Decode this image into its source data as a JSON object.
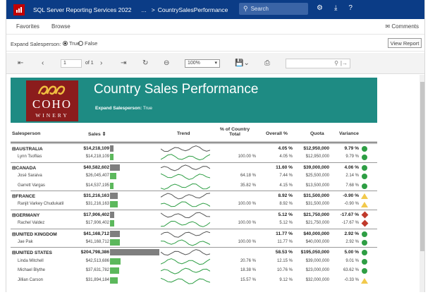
{
  "topbar": {
    "app_title": "SQL Server Reporting Services 2022",
    "ellipsis": "...",
    "breadcrumb_sep": ">",
    "report_name": "CountrySalesPerformance",
    "search_placeholder": "Search",
    "icons": [
      "gear-icon",
      "download-icon",
      "help-icon"
    ]
  },
  "nav": {
    "favorites": "Favorites",
    "browse": "Browse",
    "comments": "Comments"
  },
  "params": {
    "label": "Expand Salesperson:",
    "options": [
      "True",
      "False"
    ],
    "selected": "True",
    "view_report": "View Report"
  },
  "toolbar": {
    "page": "1",
    "of_pages": "of 1",
    "zoom": "100%",
    "icons": [
      "first-page-icon",
      "prev-page-icon",
      "next-page-icon",
      "last-page-icon",
      "refresh-icon",
      "back-icon",
      "export-icon",
      "print-icon",
      "find-icon",
      "find-next-icon"
    ]
  },
  "report": {
    "logo_word": "COHO",
    "logo_sub": "WINERY",
    "title": "Country Sales Performance",
    "subtitle_label": "Expand Salesperson:",
    "subtitle_value": "True",
    "columns": {
      "salesperson": "Salesperson",
      "sales": "Sales",
      "trend": "Trend",
      "pct_country": "% of Country",
      "pct_country_2": "Total",
      "overall": "Overall %",
      "quota": "Quota",
      "variance": "Variance"
    },
    "accent_colors": {
      "banner": "#1e8b83",
      "group_bar": "#7f7f7f",
      "person_bar": "#5cb85c",
      "good": "#2e9e44",
      "warn": "#f2c94c",
      "bad": "#c0392b"
    },
    "rows": [
      {
        "kind": "grp",
        "name": "⊟AUSTRALIA",
        "sales": "$14,218,109",
        "bar": 0.07,
        "pct": "",
        "overall": "4.05 %",
        "quota": "$12,950,000",
        "variance": "9.79 %",
        "status": "good"
      },
      {
        "kind": "sub",
        "name": "Lynn Tsoflias",
        "sales": "$14,218,109",
        "bar": 0.07,
        "pct": "100.00 %",
        "overall": "4.05 %",
        "quota": "$12,950,000",
        "variance": "9.79 %",
        "status": "good"
      },
      {
        "kind": "grp",
        "name": "⊟CANADA",
        "sales": "$40,582,602",
        "bar": 0.2,
        "pct": "",
        "overall": "11.60 %",
        "quota": "$39,000,000",
        "variance": "4.06 %",
        "status": "good"
      },
      {
        "kind": "sub",
        "name": "José Saraiva",
        "sales": "$26,045,407",
        "bar": 0.13,
        "pct": "64.18 %",
        "overall": "7.44 %",
        "quota": "$25,500,000",
        "variance": "2.14 %",
        "status": "good"
      },
      {
        "kind": "sub",
        "name": "Garrett Vargas",
        "sales": "$14,537,195",
        "bar": 0.07,
        "pct": "35.82 %",
        "overall": "4.15 %",
        "quota": "$13,500,000",
        "variance": "7.68 %",
        "status": "good"
      },
      {
        "kind": "grp",
        "name": "⊟FRANCE",
        "sales": "$31,216,163",
        "bar": 0.15,
        "pct": "",
        "overall": "8.92 %",
        "quota": "$31,500,000",
        "variance": "-0.90 %",
        "status": "warn"
      },
      {
        "kind": "sub",
        "name": "Ranjit Varkey Chudukatil",
        "sales": "$31,216,163",
        "bar": 0.15,
        "pct": "100.00 %",
        "overall": "8.92 %",
        "quota": "$31,500,000",
        "variance": "-0.90 %",
        "status": "warn"
      },
      {
        "kind": "grp",
        "name": "⊟GERMANY",
        "sales": "$17,906,402",
        "bar": 0.09,
        "pct": "",
        "overall": "5.12 %",
        "quota": "$21,750,000",
        "variance": "-17.67 %",
        "status": "bad"
      },
      {
        "kind": "sub",
        "name": "Rachel Valdez",
        "sales": "$17,906,402",
        "bar": 0.09,
        "pct": "100.00 %",
        "overall": "5.12 %",
        "quota": "$21,750,000",
        "variance": "-17.67 %",
        "status": "bad"
      },
      {
        "kind": "grp",
        "name": "⊟UNITED KINGDOM",
        "sales": "$41,168,712",
        "bar": 0.2,
        "pct": "",
        "overall": "11.77 %",
        "quota": "$40,000,000",
        "variance": "2.92 %",
        "status": "good"
      },
      {
        "kind": "sub",
        "name": "Jae Pak",
        "sales": "$41,168,712",
        "bar": 0.2,
        "pct": "100.00 %",
        "overall": "11.77 %",
        "quota": "$40,000,000",
        "variance": "2.92 %",
        "status": "good"
      },
      {
        "kind": "grp",
        "name": "⊟UNITED STATES",
        "sales": "$204,798,386",
        "bar": 1.0,
        "pct": "",
        "overall": "58.53 %",
        "quota": "$195,050,000",
        "variance": "5.00 %",
        "status": "good"
      },
      {
        "kind": "sub",
        "name": "Linda Mitchell",
        "sales": "$42,513,686",
        "bar": 0.21,
        "pct": "20.76 %",
        "overall": "12.15 %",
        "quota": "$39,000,000",
        "variance": "9.01 %",
        "status": "good"
      },
      {
        "kind": "sub",
        "name": "Michael Blythe",
        "sales": "$37,631,782",
        "bar": 0.18,
        "pct": "18.38 %",
        "overall": "10.76 %",
        "quota": "$23,000,000",
        "variance": "63.62 %",
        "status": "good"
      },
      {
        "kind": "sub",
        "name": "Jillian Carson",
        "sales": "$31,894,184",
        "bar": 0.16,
        "pct": "15.57 %",
        "overall": "9.12 %",
        "quota": "$32,000,000",
        "variance": "-0.33 %",
        "status": "warn"
      }
    ]
  }
}
